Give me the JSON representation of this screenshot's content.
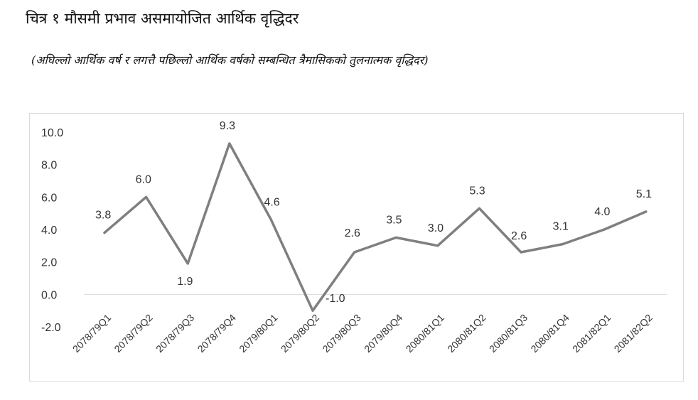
{
  "header": {
    "title": "चित्र १ मौसमी प्रभाव असमायोजित आर्थिक वृद्धिदर",
    "subtitle": "(अघिल्लो आर्थिक वर्ष र लगत्तै पछिल्लो आर्थिक वर्षको सम्बन्धित त्रैमासिकको तुलनात्मक वृद्धिदर)"
  },
  "chart_data": {
    "type": "line",
    "title": "चित्र १ मौसमी प्रभाव असमायोजित आर्थिक वृद्धिदर",
    "subtitle": "(अघिल्लो आर्थिक वर्ष र लगत्तै पछिल्लो आर्थिक वर्षको सम्बन्धित त्रैमासिकको तुलनात्मक वृद्धिदर)",
    "categories": [
      "2078/79Q1",
      "2078/79Q2",
      "2078/79Q3",
      "2078/79Q4",
      "2079/80Q1",
      "2079/80Q2",
      "2079/80Q3",
      "2079/80Q4",
      "2080/81Q1",
      "2080/81Q2",
      "2080/81Q3",
      "2080/81Q4",
      "2081/82Q1",
      "2081/82Q2"
    ],
    "series": [
      {
        "values": [
          3.8,
          6.0,
          1.9,
          9.3,
          4.6,
          -1.0,
          2.6,
          3.5,
          3.0,
          5.3,
          2.6,
          3.1,
          4.0,
          5.1
        ]
      }
    ],
    "data_labels": [
      "3.8",
      "6.0",
      "1.9",
      "9.3",
      "4.6",
      "-1.0",
      "2.6",
      "3.5",
      "3.0",
      "5.3",
      "2.6",
      "3.1",
      "4.0",
      "5.1"
    ],
    "y_ticks": [
      "10.0",
      "8.0",
      "6.0",
      "4.0",
      "2.0",
      "0.0",
      "-2.0"
    ],
    "ylim": [
      -2,
      10
    ],
    "grid": false,
    "legend": "none",
    "line_color": "#7f7f7f",
    "axis_color": "#d9d9d9"
  }
}
